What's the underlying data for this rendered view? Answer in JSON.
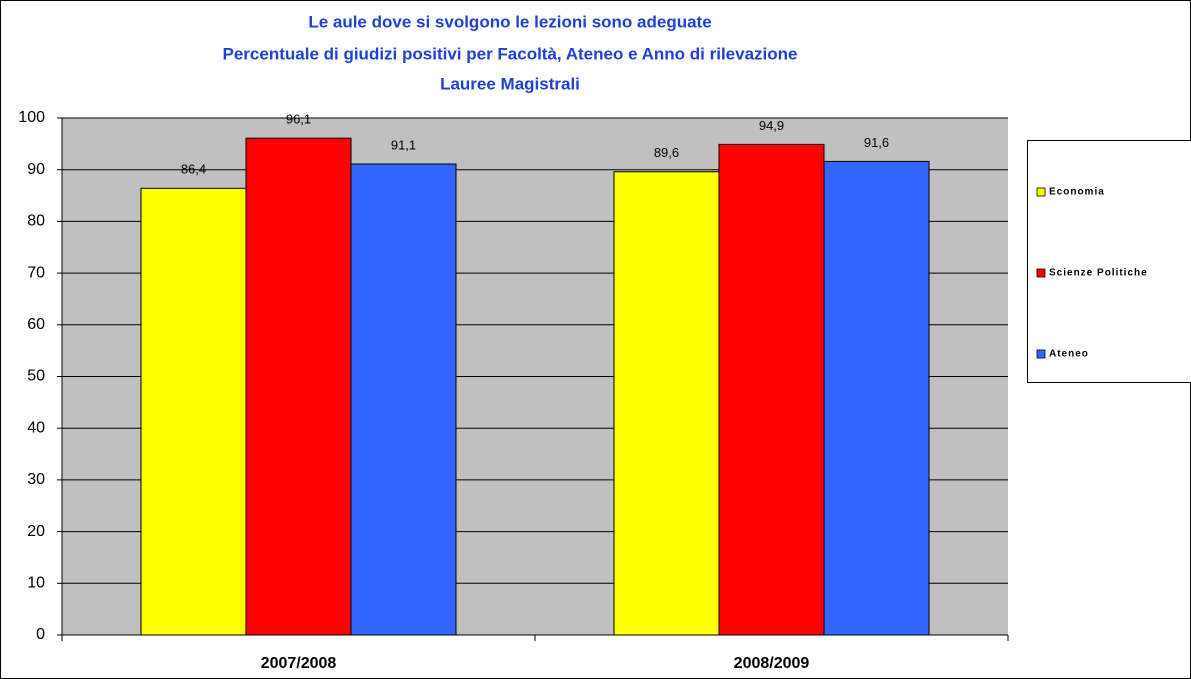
{
  "chart_data": {
    "type": "bar",
    "title": "Le aule dove si svolgono le lezioni sono adeguate",
    "subtitle": [
      "Percentuale di giudizi positivi per Facoltà,  Ateneo e Anno di rilevazione",
      "Lauree Magistrali"
    ],
    "categories": [
      "2007/2008",
      "2008/2009"
    ],
    "series": [
      {
        "name": "Economia",
        "color": "#ffff00",
        "values": [
          86.4,
          89.6
        ],
        "value_labels": [
          "86,4",
          "89,6"
        ]
      },
      {
        "name": "Scienze Politiche",
        "color": "#ff0000",
        "values": [
          96.1,
          94.9
        ],
        "value_labels": [
          "96,1",
          "94,9"
        ]
      },
      {
        "name": "Ateneo",
        "color": "#3366ff",
        "values": [
          91.1,
          91.6
        ],
        "value_labels": [
          "91,1",
          "91,6"
        ]
      }
    ],
    "ylim": [
      0,
      100
    ],
    "yticks": [
      0,
      10,
      20,
      30,
      40,
      50,
      60,
      70,
      80,
      90,
      100
    ],
    "grid": true,
    "legend": "right"
  }
}
